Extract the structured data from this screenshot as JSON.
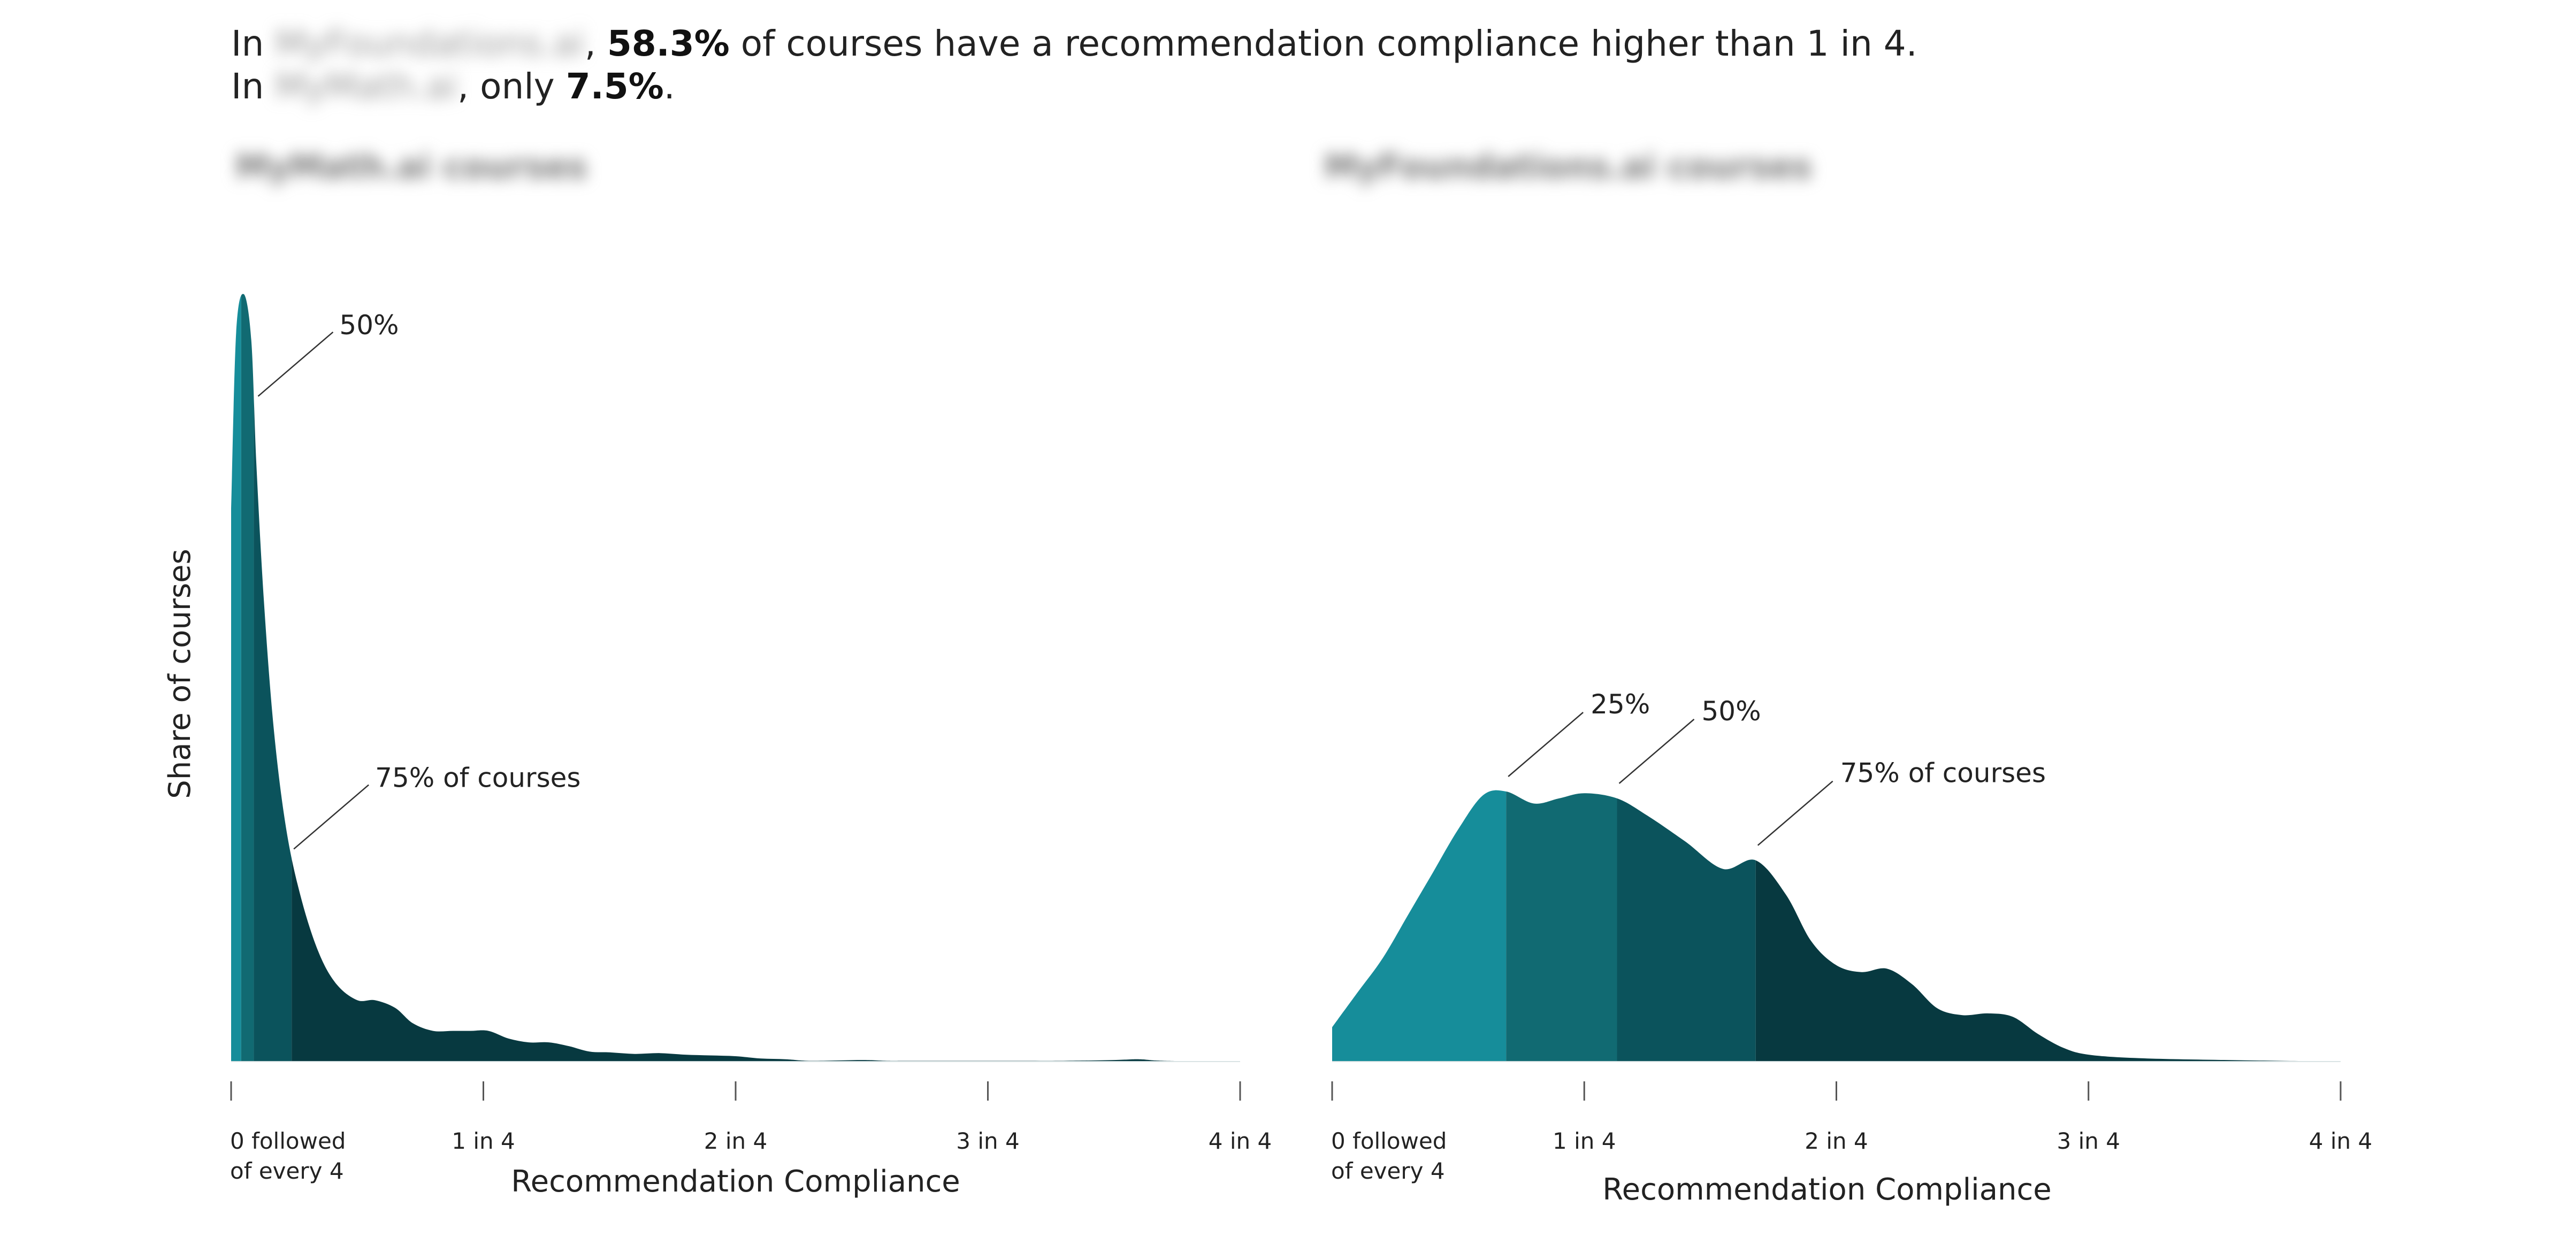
{
  "headline": {
    "line1_prefix": "In ",
    "line1_blurred": "MyFoundations.ai",
    "line1_sep": ", ",
    "line1_value": "58.3%",
    "line1_suffix": " of courses have a recommendation compliance higher than 1 in 4.",
    "line2_prefix": "In ",
    "line2_blurred": "MyMath.ai",
    "line2_sep": ", only ",
    "line2_value": "7.5%",
    "line2_suffix": "."
  },
  "colors": {
    "q1": "#168d9a",
    "q2": "#116a72",
    "q3": "#0b535c",
    "q4": "#073940",
    "axis": "#555555",
    "leader": "#333333"
  },
  "chart_data": [
    {
      "type": "area",
      "title": "MyMath.ai courses",
      "xlabel": "Recommendation Compliance",
      "ylabel": "Share of courses",
      "xlim": [
        0,
        4
      ],
      "ticks": [
        0,
        1,
        2,
        3,
        4
      ],
      "tick_labels": [
        "0 followed\nof every 4",
        "1 in 4",
        "2 in 4",
        "3 in 4",
        "4 in 4"
      ],
      "quartiles": [
        0.04,
        0.09,
        0.24
      ],
      "annotations": [
        {
          "label": "50%",
          "x": 0.09
        },
        {
          "label": "75% of courses",
          "x": 0.24
        }
      ],
      "density": {
        "x": [
          0,
          0.02,
          0.05,
          0.08,
          0.1,
          0.13,
          0.17,
          0.22,
          0.28,
          0.35,
          0.42,
          0.5,
          0.57,
          0.65,
          0.72,
          0.8,
          0.88,
          0.95,
          1.02,
          1.1,
          1.18,
          1.26,
          1.34,
          1.42,
          1.5,
          1.6,
          1.7,
          1.8,
          1.9,
          2.0,
          2.1,
          2.2,
          2.3,
          2.5,
          2.6,
          2.7,
          3.0,
          3.3,
          3.5,
          3.6,
          3.7,
          4.0
        ],
        "y": [
          0.72,
          0.95,
          1.0,
          0.94,
          0.78,
          0.6,
          0.43,
          0.3,
          0.21,
          0.14,
          0.1,
          0.08,
          0.08,
          0.07,
          0.05,
          0.04,
          0.04,
          0.04,
          0.04,
          0.03,
          0.025,
          0.025,
          0.02,
          0.013,
          0.012,
          0.01,
          0.011,
          0.009,
          0.008,
          0.007,
          0.004,
          0.003,
          0.001,
          0.002,
          0.001,
          0.001,
          0.001,
          0.001,
          0.002,
          0.003,
          0.001,
          0.0
        ]
      }
    },
    {
      "type": "area",
      "title": "MyFoundations.ai courses",
      "xlabel": "Recommendation Compliance",
      "xlim": [
        0,
        4
      ],
      "ticks": [
        0,
        1,
        2,
        3,
        4
      ],
      "tick_labels": [
        "0 followed\nof every 4",
        "1 in 4",
        "2 in 4",
        "3 in 4",
        "4 in 4"
      ],
      "quartiles": [
        0.69,
        1.13,
        1.68
      ],
      "annotations": [
        {
          "label": "25%",
          "x": 0.69
        },
        {
          "label": "50%",
          "x": 1.13
        },
        {
          "label": "75% of courses",
          "x": 1.68
        }
      ],
      "density": {
        "x": [
          0,
          0.1,
          0.2,
          0.3,
          0.4,
          0.5,
          0.6,
          0.69,
          0.8,
          0.9,
          1.0,
          1.13,
          1.25,
          1.4,
          1.55,
          1.68,
          1.8,
          1.9,
          2.0,
          2.1,
          2.2,
          2.3,
          2.4,
          2.5,
          2.6,
          2.7,
          2.8,
          2.9,
          3.0,
          3.2,
          3.5,
          4.0
        ],
        "y": [
          0.02,
          0.04,
          0.06,
          0.085,
          0.11,
          0.135,
          0.155,
          0.157,
          0.15,
          0.153,
          0.156,
          0.153,
          0.143,
          0.128,
          0.112,
          0.117,
          0.097,
          0.07,
          0.056,
          0.052,
          0.054,
          0.045,
          0.031,
          0.027,
          0.028,
          0.026,
          0.016,
          0.008,
          0.004,
          0.002,
          0.001,
          0.0
        ]
      }
    }
  ]
}
